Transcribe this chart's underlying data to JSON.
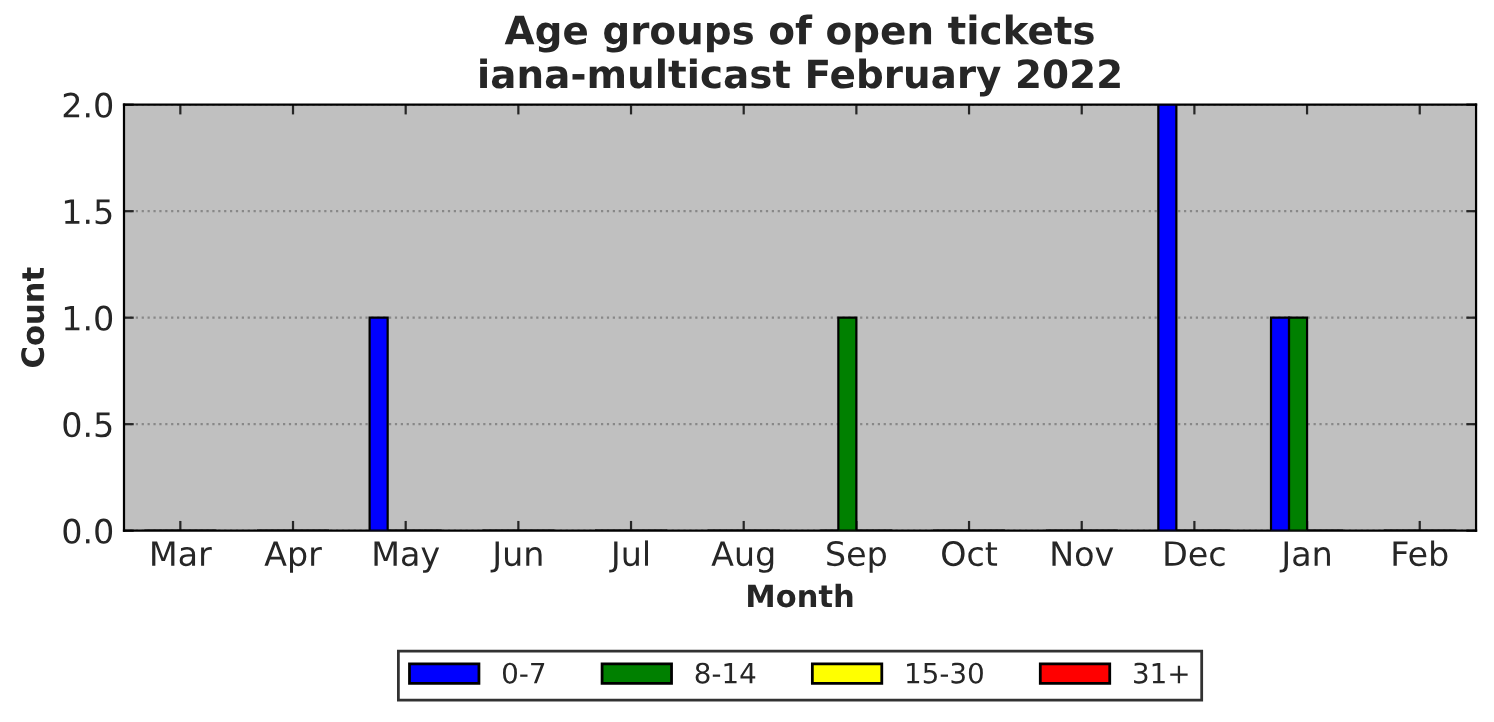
{
  "chart_data": {
    "type": "bar",
    "title": "Age groups of open tickets\niana-multicast February 2022",
    "xlabel": "Month",
    "ylabel": "Count",
    "categories": [
      "Mar",
      "Apr",
      "May",
      "Jun",
      "Jul",
      "Aug",
      "Sep",
      "Oct",
      "Nov",
      "Dec",
      "Jan",
      "Feb"
    ],
    "series": [
      {
        "name": "0-7",
        "color": "#0000ff",
        "values": [
          0,
          0,
          1,
          0,
          0,
          0,
          0,
          0,
          0,
          2,
          1,
          0
        ]
      },
      {
        "name": "8-14",
        "color": "#008000",
        "values": [
          0,
          0,
          0,
          0,
          0,
          0,
          1,
          0,
          0,
          0,
          1,
          0
        ]
      },
      {
        "name": "15-30",
        "color": "#ffff00",
        "values": [
          0,
          0,
          0,
          0,
          0,
          0,
          0,
          0,
          0,
          0,
          0,
          0
        ]
      },
      {
        "name": "31+",
        "color": "#ff0000",
        "values": [
          0,
          0,
          0,
          0,
          0,
          0,
          0,
          0,
          0,
          0,
          0,
          0
        ]
      }
    ],
    "ylim": [
      0,
      2
    ],
    "yticks": [
      {
        "value": 0,
        "label": "0.0"
      },
      {
        "value": 0.5,
        "label": "0.5"
      },
      {
        "value": 1,
        "label": "1.0"
      },
      {
        "value": 1.5,
        "label": "1.5"
      },
      {
        "value": 2,
        "label": "2.0"
      }
    ],
    "grid": "y",
    "legend": "bottom"
  }
}
